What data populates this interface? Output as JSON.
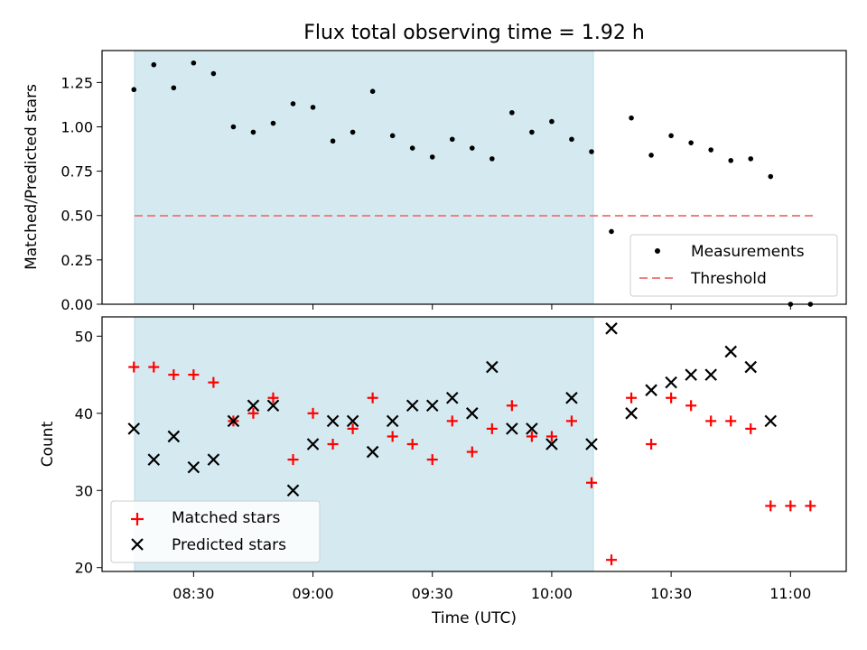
{
  "chart_data": {
    "title": "Flux total observing time = 1.92 h",
    "xlabel": "Time (UTC)",
    "x_ticks": [
      "08:30",
      "09:00",
      "09:30",
      "10:00",
      "10:30",
      "11:00"
    ],
    "x_range": [
      "08:07",
      "11:14"
    ],
    "shaded_span": [
      "08:15",
      "10:10"
    ],
    "colors": {
      "shade": "#d4eaf0",
      "threshold": "#f08080",
      "matched": "#ff0000",
      "predicted": "#000000",
      "measurement": "#000000"
    },
    "panels": [
      {
        "type": "scatter",
        "ylabel": "Matched/Predicted stars",
        "ylim": [
          0,
          1.43
        ],
        "y_ticks": [
          "0.00",
          "0.25",
          "0.50",
          "0.75",
          "1.00",
          "1.25"
        ],
        "legend_position": "lower-right",
        "series": [
          {
            "name": "Measurements",
            "marker": "dot",
            "x": [
              "08:15",
              "08:20",
              "08:25",
              "08:30",
              "08:35",
              "08:40",
              "08:45",
              "08:50",
              "08:55",
              "09:00",
              "09:05",
              "09:10",
              "09:15",
              "09:20",
              "09:25",
              "09:30",
              "09:35",
              "09:40",
              "09:45",
              "09:50",
              "09:55",
              "10:00",
              "10:05",
              "10:10",
              "10:15",
              "10:20",
              "10:25",
              "10:30",
              "10:35",
              "10:40",
              "10:45",
              "10:50",
              "10:55",
              "11:00",
              "11:05"
            ],
            "y": [
              1.21,
              1.35,
              1.22,
              1.36,
              1.3,
              1.0,
              0.97,
              1.02,
              1.13,
              1.11,
              0.92,
              0.97,
              1.2,
              0.95,
              0.88,
              0.83,
              0.93,
              0.88,
              0.82,
              1.08,
              0.97,
              1.03,
              0.93,
              0.86,
              0.41,
              1.05,
              0.84,
              0.95,
              0.91,
              0.87,
              0.81,
              0.82,
              0.72,
              0.0,
              0.0
            ]
          },
          {
            "name": "Threshold",
            "type": "line",
            "style": "dashed",
            "x": [
              "08:15",
              "11:05"
            ],
            "y": [
              0.5,
              0.5
            ]
          }
        ]
      },
      {
        "type": "scatter",
        "ylabel": "Count",
        "ylim": [
          19.5,
          52.5
        ],
        "y_ticks": [
          "20",
          "30",
          "40",
          "50"
        ],
        "legend_position": "lower-left",
        "series": [
          {
            "name": "Matched stars",
            "marker": "plus",
            "x": [
              "08:15",
              "08:20",
              "08:25",
              "08:30",
              "08:35",
              "08:40",
              "08:45",
              "08:50",
              "08:55",
              "09:00",
              "09:05",
              "09:10",
              "09:15",
              "09:20",
              "09:25",
              "09:30",
              "09:35",
              "09:40",
              "09:45",
              "09:50",
              "09:55",
              "10:00",
              "10:05",
              "10:10",
              "10:15",
              "10:20",
              "10:25",
              "10:30",
              "10:35",
              "10:40",
              "10:45",
              "10:50",
              "10:55",
              "11:00",
              "11:05"
            ],
            "y": [
              46,
              46,
              45,
              45,
              44,
              39,
              40,
              42,
              34,
              40,
              36,
              38,
              42,
              37,
              36,
              34,
              39,
              35,
              38,
              41,
              37,
              37,
              39,
              31,
              21,
              42,
              36,
              42,
              41,
              39,
              39,
              38,
              28,
              28,
              28
            ]
          },
          {
            "name": "Predicted stars",
            "marker": "x",
            "x": [
              "08:15",
              "08:20",
              "08:25",
              "08:30",
              "08:35",
              "08:40",
              "08:45",
              "08:50",
              "08:55",
              "09:00",
              "09:05",
              "09:10",
              "09:15",
              "09:20",
              "09:25",
              "09:30",
              "09:35",
              "09:40",
              "09:45",
              "09:50",
              "09:55",
              "10:00",
              "10:05",
              "10:10",
              "10:15",
              "10:20",
              "10:25",
              "10:30",
              "10:35",
              "10:40",
              "10:45",
              "10:50",
              "10:55"
            ],
            "y": [
              38,
              34,
              37,
              33,
              34,
              39,
              41,
              41,
              30,
              36,
              39,
              39,
              35,
              39,
              41,
              41,
              42,
              40,
              46,
              38,
              38,
              36,
              42,
              36,
              51,
              40,
              43,
              44,
              45,
              45,
              48,
              46,
              39
            ]
          }
        ]
      }
    ]
  }
}
